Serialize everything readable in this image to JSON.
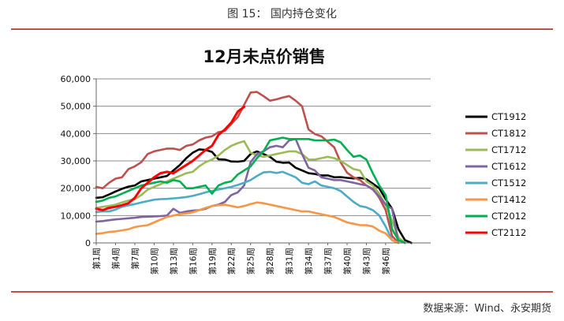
{
  "figure": {
    "caption": "图 15：  国内持仓变化",
    "source": "数据来源：Wind、永安期货"
  },
  "chart_data": {
    "type": "line",
    "title": "12月未点价销售",
    "xlabel": "",
    "ylabel": "",
    "ylim": [
      0,
      60000
    ],
    "yticks": [
      "0",
      "10,000",
      "20,000",
      "30,000",
      "40,000",
      "50,000",
      "60,000"
    ],
    "yticks_values": [
      0,
      10000,
      20000,
      30000,
      40000,
      50000,
      60000
    ],
    "x_count": 53,
    "xticks": [
      {
        "index": 0,
        "label": "第1周"
      },
      {
        "index": 3,
        "label": "第4周"
      },
      {
        "index": 6,
        "label": "第7周"
      },
      {
        "index": 9,
        "label": "第10周"
      },
      {
        "index": 12,
        "label": "第13周"
      },
      {
        "index": 15,
        "label": "第16周"
      },
      {
        "index": 18,
        "label": "第19周"
      },
      {
        "index": 21,
        "label": "第22周"
      },
      {
        "index": 24,
        "label": "第25周"
      },
      {
        "index": 27,
        "label": "第28周"
      },
      {
        "index": 30,
        "label": "第31周"
      },
      {
        "index": 33,
        "label": "第34周"
      },
      {
        "index": 36,
        "label": "第37周"
      },
      {
        "index": 39,
        "label": "第40周"
      },
      {
        "index": 42,
        "label": "第43周"
      },
      {
        "index": 45,
        "label": "第46周"
      }
    ],
    "grid": true,
    "legend_position": "right",
    "series": [
      {
        "name": "CT1912",
        "color": "#000000",
        "values": [
          16500,
          16700,
          17700,
          18800,
          19800,
          20600,
          21000,
          22500,
          23000,
          23500,
          24000,
          24500,
          26500,
          28500,
          31000,
          33000,
          34200,
          34000,
          33300,
          30600,
          30500,
          29800,
          29700,
          30000,
          32500,
          33500,
          32500,
          31500,
          29700,
          29300,
          29400,
          27500,
          26500,
          25500,
          25200,
          24700,
          24700,
          24000,
          24100,
          23800,
          23600,
          23800,
          23300,
          21700,
          20000,
          16000,
          12500,
          5000,
          1000,
          0
        ]
      },
      {
        "name": "CT1812",
        "color": "#c0504d",
        "values": [
          20500,
          20000,
          22000,
          23500,
          24000,
          27000,
          28000,
          29500,
          32500,
          33500,
          34000,
          34500,
          34500,
          34000,
          35500,
          36000,
          37500,
          38500,
          39000,
          40500,
          41000,
          43500,
          46000,
          50500,
          55000,
          55200,
          53700,
          52000,
          52500,
          53200,
          53700,
          52000,
          50000,
          41500,
          39800,
          39000,
          37000,
          35000,
          29500,
          25700,
          24000,
          23000,
          21000,
          19800,
          16500,
          12000,
          2500,
          0
        ]
      },
      {
        "name": "CT1712",
        "color": "#9bbb59",
        "values": [
          12800,
          13200,
          13500,
          14000,
          14800,
          15500,
          16000,
          17500,
          19500,
          20500,
          21500,
          22500,
          23500,
          24500,
          25500,
          26000,
          28000,
          29500,
          30500,
          32000,
          34000,
          35500,
          36500,
          37200,
          33000,
          32000,
          31500,
          32000,
          32500,
          33000,
          33500,
          33500,
          32500,
          30500,
          30500,
          31000,
          31500,
          31000,
          30000,
          28500,
          27000,
          26500,
          22500,
          21000,
          18000,
          14000,
          8000,
          2000,
          0
        ]
      },
      {
        "name": "CT1612",
        "color": "#8064a2",
        "values": [
          7800,
          8000,
          8300,
          8600,
          8800,
          9000,
          9200,
          9500,
          9600,
          9700,
          9800,
          10000,
          12500,
          11000,
          11500,
          11800,
          12000,
          12500,
          13500,
          14000,
          15000,
          17500,
          18500,
          21000,
          29500,
          32500,
          33500,
          35000,
          35500,
          35000,
          37500,
          38000,
          32500,
          27500,
          26500,
          24000,
          23500,
          23000,
          23000,
          22500,
          22000,
          21500,
          21000,
          19500,
          17000,
          14000,
          12500,
          0
        ]
      },
      {
        "name": "CT1512",
        "color": "#4bacc6",
        "values": [
          11300,
          11500,
          11500,
          12200,
          13200,
          13800,
          14200,
          14800,
          15300,
          15800,
          16000,
          16100,
          16300,
          16500,
          16800,
          17200,
          17800,
          18500,
          19000,
          19500,
          20000,
          20500,
          21200,
          22000,
          23000,
          24500,
          25800,
          26000,
          25600,
          26000,
          25000,
          24000,
          22000,
          21500,
          22500,
          21000,
          20500,
          20000,
          19000,
          17000,
          15000,
          13500,
          13000,
          12000,
          10000,
          6000,
          1000,
          0
        ]
      },
      {
        "name": "CT1412",
        "color": "#f79646",
        "values": [
          3300,
          3600,
          4000,
          4200,
          4600,
          5000,
          5800,
          6200,
          6500,
          7500,
          8500,
          9500,
          10000,
          10500,
          10800,
          11200,
          12000,
          12800,
          13500,
          13800,
          14000,
          13500,
          13000,
          13500,
          14200,
          14800,
          14500,
          14000,
          13500,
          13000,
          12500,
          12000,
          11500,
          11500,
          11000,
          10500,
          10000,
          9500,
          8500,
          7500,
          7000,
          6500,
          6500,
          6000,
          4500,
          3500,
          1000,
          0
        ]
      },
      {
        "name": "CT2012",
        "color": "#00b050",
        "values": [
          15000,
          15500,
          16500,
          17000,
          18000,
          19000,
          20000,
          21000,
          21500,
          22000,
          22500,
          22000,
          23000,
          22500,
          20000,
          20000,
          20500,
          21000,
          18000,
          21000,
          22000,
          22500,
          25000,
          26500,
          28000,
          31000,
          33500,
          37500,
          38000,
          38500,
          38000,
          38000,
          38000,
          38000,
          37500,
          37500,
          37500,
          37800,
          36800,
          34000,
          31500,
          32000,
          30500,
          25500,
          21000,
          17500,
          5000,
          1000,
          0
        ]
      },
      {
        "name": "CT2112",
        "color": "#ff0000",
        "values": [
          12500,
          12000,
          12800,
          13200,
          13800,
          14500,
          16500,
          20000,
          22000,
          24000,
          25500,
          26000,
          25500,
          27000,
          28500,
          30000,
          32000,
          34000,
          35500,
          39500,
          41500,
          44000,
          48000,
          49800
        ]
      }
    ]
  }
}
